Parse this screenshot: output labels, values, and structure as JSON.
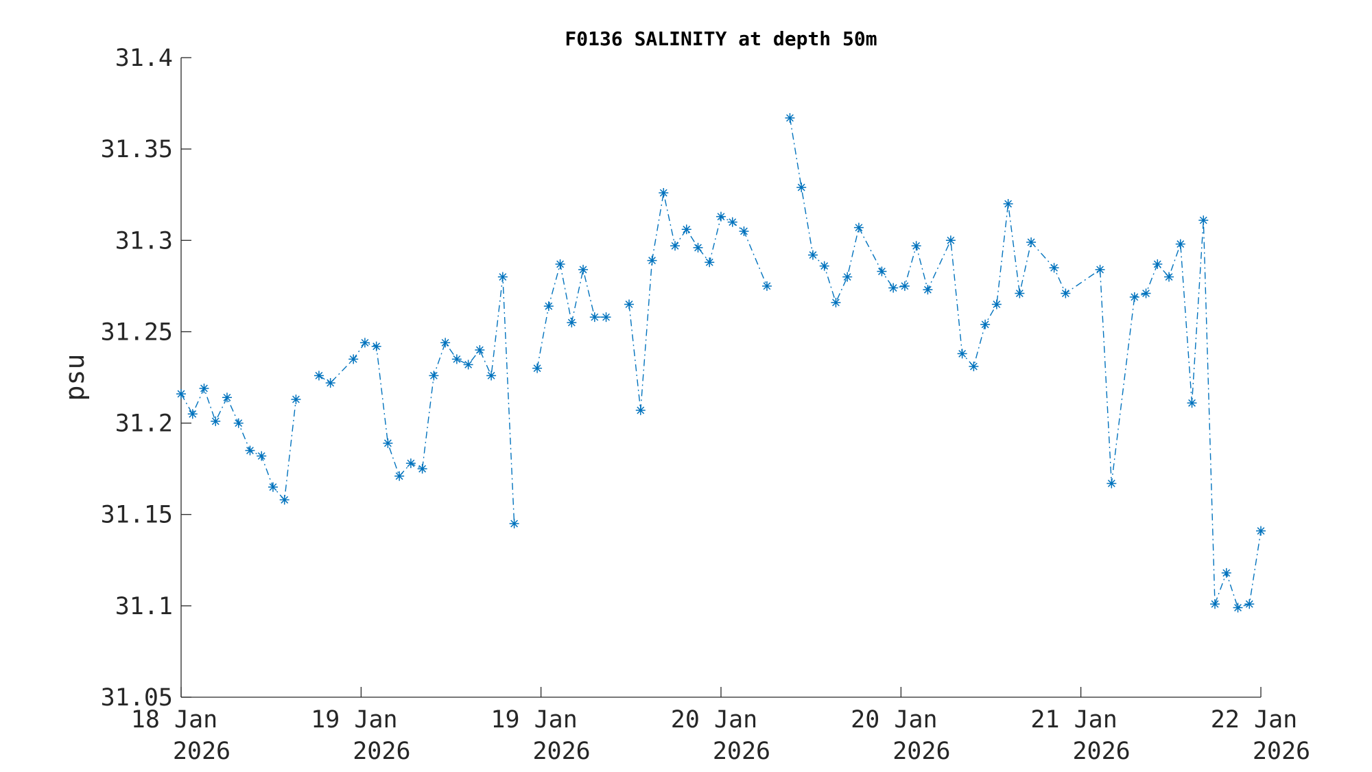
{
  "chart_data": {
    "type": "line",
    "title": "F0136 SALINITY at depth 50m",
    "xlabel": "",
    "ylabel": "psu",
    "ylim": [
      31.05,
      31.4
    ],
    "xlim": [
      0,
      94
    ],
    "x_units": "sample hour index",
    "yticks": [
      31.05,
      31.1,
      31.15,
      31.2,
      31.25,
      31.3,
      31.35,
      31.4
    ],
    "ytick_labels": [
      "31.05",
      "31.1",
      "31.15",
      "31.2",
      "31.25",
      "31.3",
      "31.35",
      "31.4"
    ],
    "xticks": [
      0,
      15.67,
      31.33,
      47,
      62.67,
      78.33,
      94
    ],
    "xtick_labels": [
      [
        "18 Jan",
        "2026"
      ],
      [
        "19 Jan",
        "2026"
      ],
      [
        "19 Jan",
        "2026"
      ],
      [
        "20 Jan",
        "2026"
      ],
      [
        "20 Jan",
        "2026"
      ],
      [
        "21 Jan",
        "2026"
      ],
      [
        "22 Jan",
        "2026"
      ]
    ],
    "grid": false,
    "series": [
      {
        "name": "salinity",
        "color": "#0072BD",
        "line_style": "dash-dot",
        "marker": "asterisk",
        "x": [
          0,
          1,
          2,
          3,
          4,
          5,
          6,
          7,
          8,
          9,
          10,
          11,
          12,
          13,
          15,
          16,
          17,
          18,
          19,
          20,
          21,
          22,
          23,
          24,
          25,
          26,
          27,
          28,
          29,
          30,
          31,
          32,
          33,
          34,
          35,
          36,
          37,
          38,
          39,
          40,
          41,
          42,
          43,
          44,
          45,
          46,
          47,
          48,
          49,
          51,
          52,
          53,
          54,
          55,
          56,
          57,
          58,
          59,
          61,
          62,
          63,
          64,
          65,
          67,
          68,
          69,
          70,
          71,
          72,
          73,
          74,
          76,
          77,
          80,
          81,
          83,
          84,
          85,
          86,
          87,
          88,
          89,
          90,
          91,
          92,
          93,
          94
        ],
        "y": [
          31.216,
          31.205,
          31.219,
          31.201,
          31.214,
          31.2,
          31.185,
          31.182,
          31.165,
          31.158,
          31.213,
          null,
          31.226,
          31.222,
          31.235,
          31.244,
          31.242,
          31.189,
          31.171,
          31.178,
          31.175,
          31.226,
          31.244,
          31.235,
          31.232,
          31.24,
          31.226,
          31.28,
          31.145,
          null,
          31.23,
          31.264,
          31.287,
          31.255,
          31.284,
          31.258,
          31.258,
          null,
          31.265,
          31.207,
          31.289,
          31.326,
          31.297,
          31.306,
          31.296,
          31.288,
          31.313,
          31.31,
          31.305,
          31.275,
          null,
          31.367,
          31.329,
          31.292,
          31.286,
          31.266,
          31.28,
          31.307,
          31.283,
          31.274,
          31.275,
          31.297,
          31.273,
          31.3,
          31.238,
          31.231,
          31.254,
          31.265,
          31.32,
          31.271,
          31.299,
          31.285,
          31.271,
          31.284,
          31.167,
          31.269,
          31.271,
          31.287,
          31.28,
          31.298,
          31.211,
          31.311,
          31.101,
          31.118,
          31.099,
          31.101,
          31.141
        ]
      }
    ]
  }
}
